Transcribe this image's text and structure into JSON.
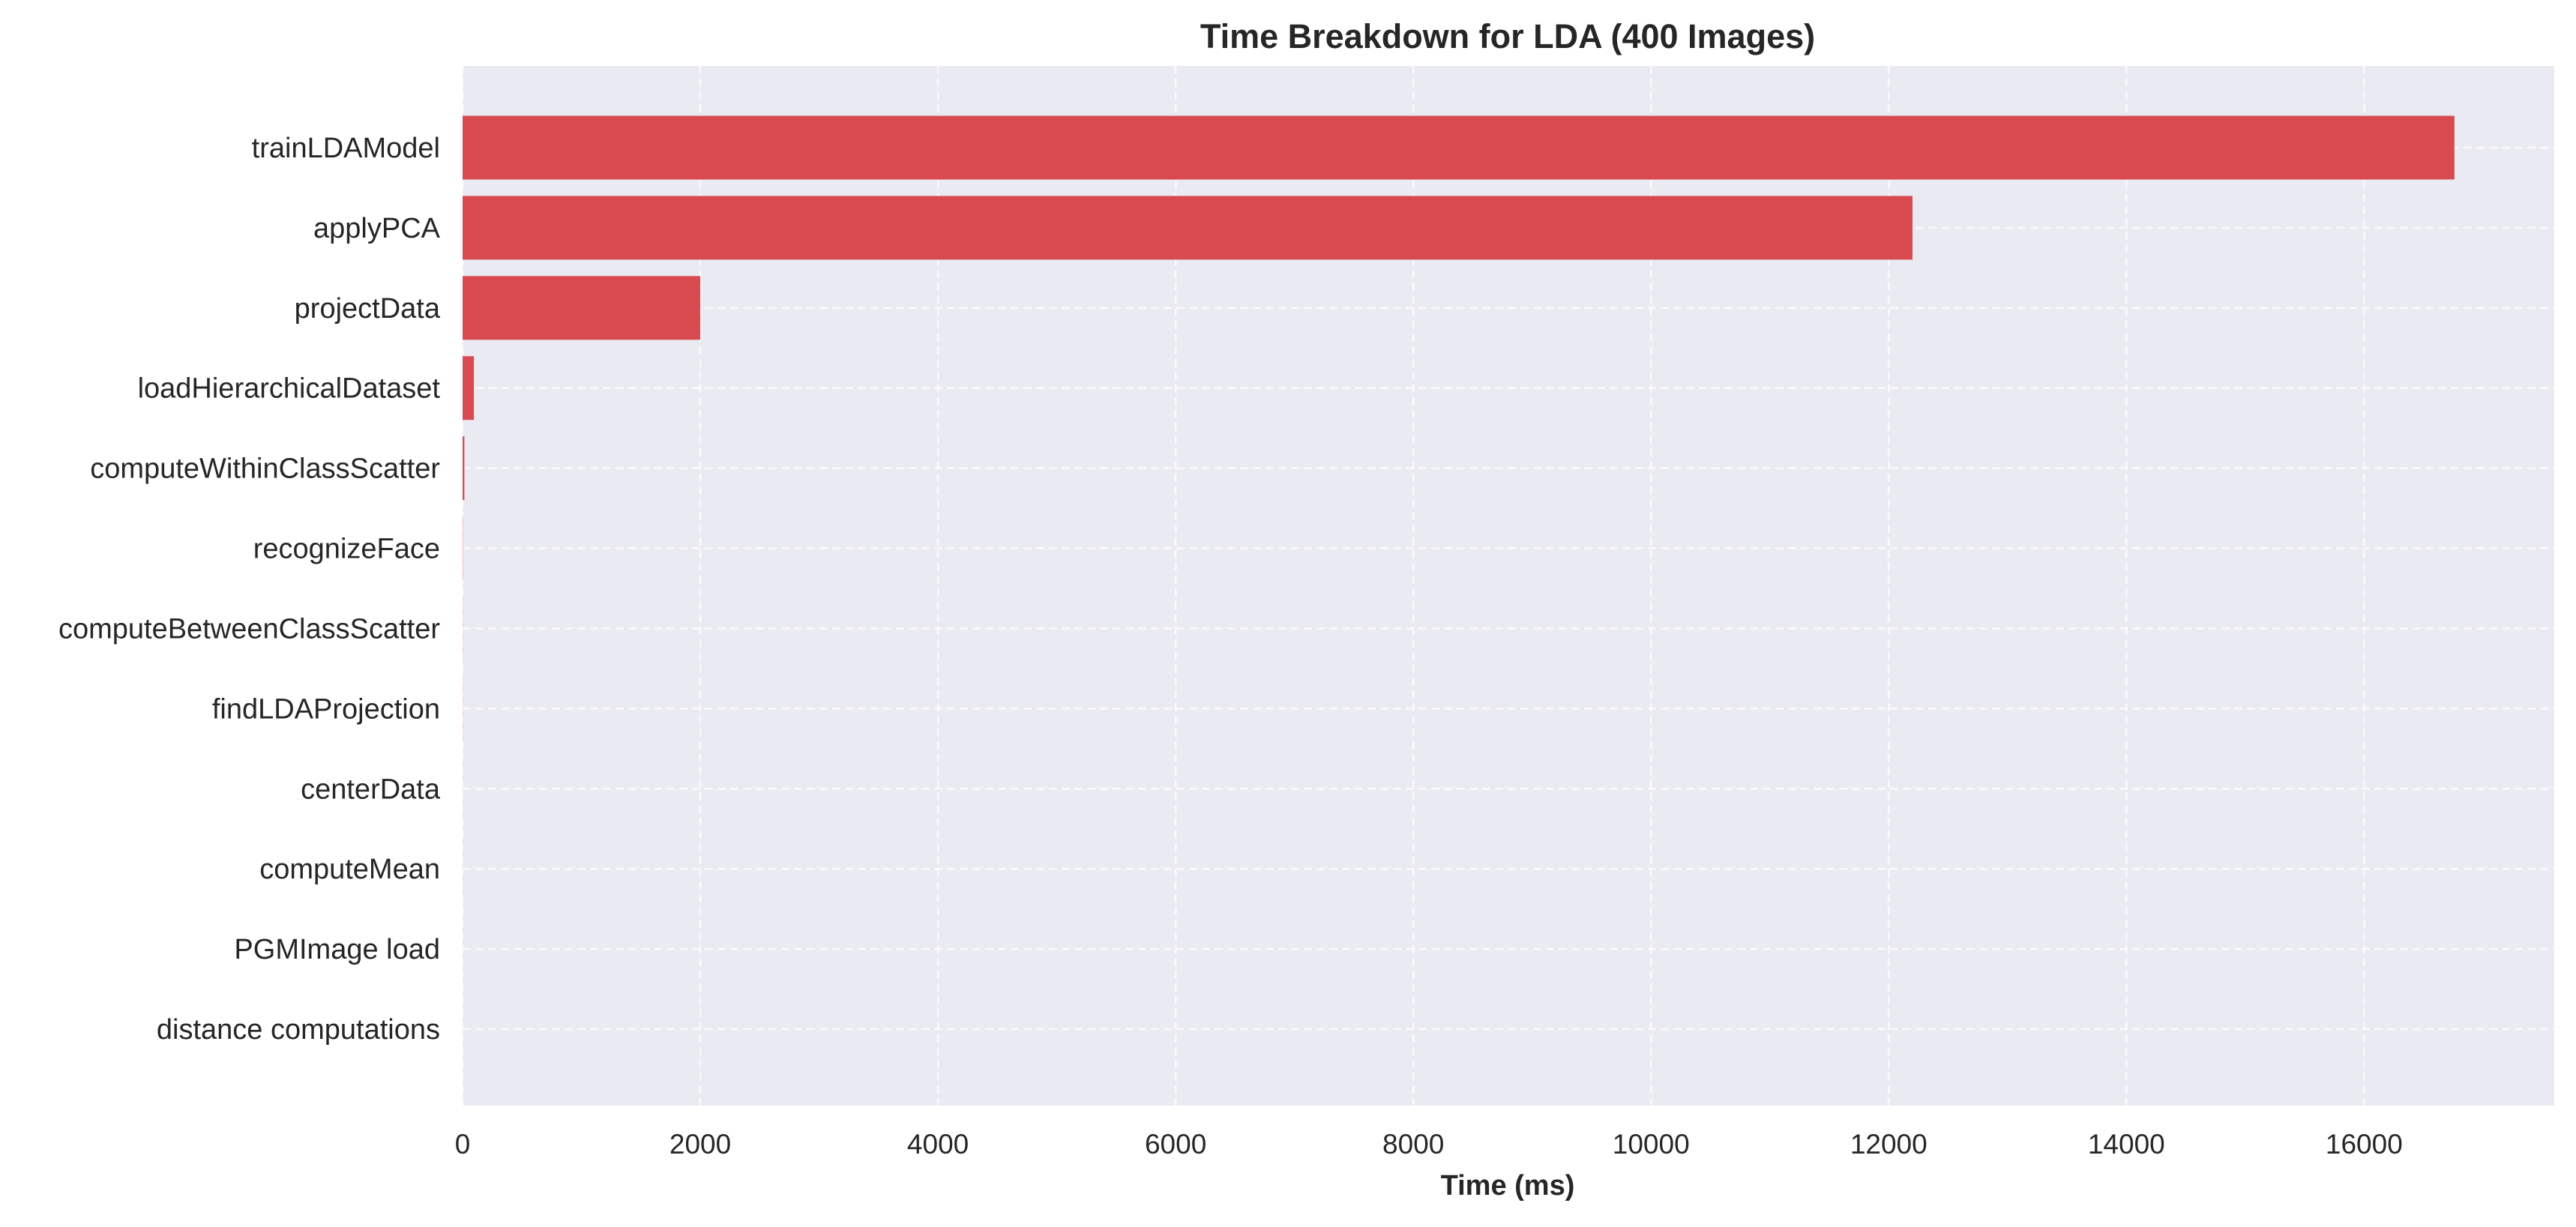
{
  "chart_data": {
    "type": "bar",
    "orientation": "horizontal",
    "title": "Time Breakdown for LDA (400 Images)",
    "xlabel": "Time (ms)",
    "ylabel": "",
    "xlim": [
      0,
      17600
    ],
    "xticks": [
      0,
      2000,
      4000,
      6000,
      8000,
      10000,
      12000,
      14000,
      16000
    ],
    "categories": [
      "trainLDAModel",
      "applyPCA",
      "projectData",
      "loadHierarchicalDataset",
      "computeWithinClassScatter",
      "recognizeFace",
      "computeBetweenClassScatter",
      "findLDAProjection",
      "centerData",
      "computeMean",
      "PGMImage load",
      "distance computations"
    ],
    "values": [
      16760,
      12200,
      2000,
      95,
      15,
      2,
      1,
      1,
      0.5,
      0.5,
      0.3,
      0.2
    ],
    "grid": true,
    "bar_color": "#d94a50",
    "plot_background": "#eaeaf2",
    "grid_color": "#ffffff"
  }
}
